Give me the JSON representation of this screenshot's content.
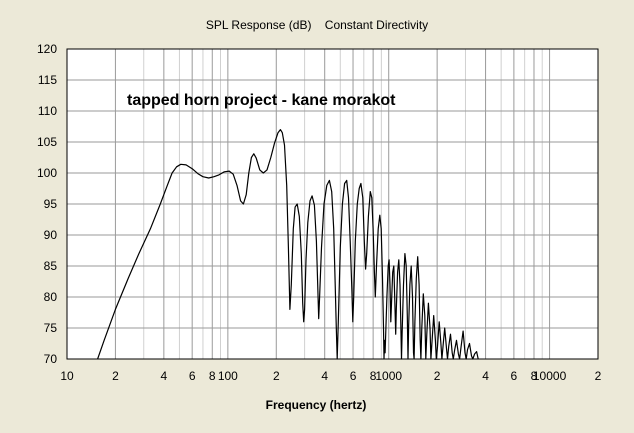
{
  "chart_data": {
    "type": "line",
    "title": "SPL Response (dB)    Constant Directivity",
    "annotation": "tapped horn project - kane morakot",
    "xlabel": "Frequency (hertz)",
    "ylabel": "",
    "x_scale": "log",
    "xlim": [
      10,
      20000
    ],
    "ylim": [
      70,
      120
    ],
    "grid": true,
    "x_tick_labels": [
      {
        "value": 10,
        "label": "10"
      },
      {
        "value": 20,
        "label": "2"
      },
      {
        "value": 40,
        "label": "4"
      },
      {
        "value": 60,
        "label": "6"
      },
      {
        "value": 80,
        "label": "8"
      },
      {
        "value": 100,
        "label": "100"
      },
      {
        "value": 200,
        "label": "2"
      },
      {
        "value": 400,
        "label": "4"
      },
      {
        "value": 600,
        "label": "6"
      },
      {
        "value": 800,
        "label": "8"
      },
      {
        "value": 1000,
        "label": "1000"
      },
      {
        "value": 2000,
        "label": "2"
      },
      {
        "value": 4000,
        "label": "4"
      },
      {
        "value": 6000,
        "label": "6"
      },
      {
        "value": 8000,
        "label": "8"
      },
      {
        "value": 10000,
        "label": "10000"
      },
      {
        "value": 20000,
        "label": "2"
      }
    ],
    "y_ticks": [
      70,
      75,
      80,
      85,
      90,
      95,
      100,
      105,
      110,
      115,
      120
    ],
    "series": [
      {
        "color": "#000000",
        "points": [
          [
            15.5,
            70
          ],
          [
            17,
            73
          ],
          [
            20,
            78
          ],
          [
            24,
            83
          ],
          [
            28,
            87
          ],
          [
            33,
            91
          ],
          [
            38,
            95
          ],
          [
            42,
            98
          ],
          [
            45,
            100
          ],
          [
            48,
            101
          ],
          [
            51,
            101.4
          ],
          [
            55,
            101.3
          ],
          [
            60,
            100.7
          ],
          [
            65,
            99.9
          ],
          [
            70,
            99.4
          ],
          [
            76,
            99.2
          ],
          [
            82,
            99.4
          ],
          [
            88,
            99.7
          ],
          [
            95,
            100.2
          ],
          [
            102,
            100.3
          ],
          [
            108,
            99.8
          ],
          [
            114,
            98
          ],
          [
            120,
            95.5
          ],
          [
            125,
            95
          ],
          [
            130,
            96.5
          ],
          [
            135,
            100
          ],
          [
            140,
            102.5
          ],
          [
            145,
            103.1
          ],
          [
            150,
            102.4
          ],
          [
            158,
            100.5
          ],
          [
            166,
            100
          ],
          [
            175,
            100.5
          ],
          [
            185,
            102.5
          ],
          [
            195,
            104.8
          ],
          [
            205,
            106.5
          ],
          [
            212,
            107
          ],
          [
            218,
            106.5
          ],
          [
            225,
            104.5
          ],
          [
            232,
            98
          ],
          [
            238,
            88
          ],
          [
            243,
            78
          ],
          [
            248,
            82
          ],
          [
            255,
            91
          ],
          [
            262,
            94.5
          ],
          [
            270,
            95
          ],
          [
            278,
            93
          ],
          [
            286,
            87
          ],
          [
            292,
            79
          ],
          [
            296,
            76
          ],
          [
            300,
            78
          ],
          [
            306,
            86
          ],
          [
            314,
            92
          ],
          [
            324,
            95.5
          ],
          [
            334,
            96.3
          ],
          [
            345,
            94.8
          ],
          [
            355,
            89
          ],
          [
            362,
            82
          ],
          [
            367,
            76.5
          ],
          [
            372,
            80
          ],
          [
            382,
            88
          ],
          [
            396,
            95
          ],
          [
            412,
            98
          ],
          [
            428,
            98.8
          ],
          [
            442,
            97
          ],
          [
            455,
            91
          ],
          [
            465,
            82
          ],
          [
            472,
            75
          ],
          [
            478,
            70
          ],
          [
            486,
            76
          ],
          [
            500,
            88
          ],
          [
            515,
            95
          ],
          [
            532,
            98.3
          ],
          [
            548,
            98.8
          ],
          [
            562,
            96
          ],
          [
            576,
            89
          ],
          [
            590,
            81
          ],
          [
            598,
            76
          ],
          [
            606,
            80
          ],
          [
            620,
            89
          ],
          [
            638,
            95
          ],
          [
            655,
            97.5
          ],
          [
            672,
            98.3
          ],
          [
            690,
            96
          ],
          [
            705,
            89
          ],
          [
            718,
            84.5
          ],
          [
            730,
            87
          ],
          [
            748,
            93
          ],
          [
            768,
            97
          ],
          [
            785,
            96
          ],
          [
            800,
            91
          ],
          [
            815,
            84
          ],
          [
            825,
            80
          ],
          [
            840,
            85
          ],
          [
            860,
            91
          ],
          [
            880,
            93.2
          ],
          [
            898,
            91
          ],
          [
            915,
            83
          ],
          [
            928,
            75
          ],
          [
            935,
            70
          ],
          [
            942,
            73
          ],
          [
            950,
            71
          ],
          [
            958,
            74
          ],
          [
            975,
            80
          ],
          [
            992,
            85
          ],
          [
            1005,
            86
          ],
          [
            1018,
            82
          ],
          [
            1030,
            76
          ],
          [
            1040,
            79
          ],
          [
            1058,
            84
          ],
          [
            1075,
            85
          ],
          [
            1090,
            80
          ],
          [
            1105,
            74
          ],
          [
            1115,
            78
          ],
          [
            1135,
            84
          ],
          [
            1155,
            86
          ],
          [
            1175,
            82
          ],
          [
            1190,
            75
          ],
          [
            1200,
            70
          ],
          [
            1212,
            74
          ],
          [
            1235,
            82
          ],
          [
            1260,
            87
          ],
          [
            1285,
            85
          ],
          [
            1305,
            77
          ],
          [
            1318,
            70
          ],
          [
            1330,
            75
          ],
          [
            1355,
            82
          ],
          [
            1380,
            85
          ],
          [
            1405,
            80
          ],
          [
            1425,
            71
          ],
          [
            1438,
            70
          ],
          [
            1455,
            76
          ],
          [
            1485,
            83
          ],
          [
            1515,
            86.5
          ],
          [
            1545,
            82
          ],
          [
            1570,
            73
          ],
          [
            1585,
            70
          ],
          [
            1605,
            75
          ],
          [
            1640,
            80.5
          ],
          [
            1675,
            77
          ],
          [
            1700,
            70
          ],
          [
            1725,
            74
          ],
          [
            1765,
            79
          ],
          [
            1805,
            75
          ],
          [
            1830,
            70
          ],
          [
            1860,
            73
          ],
          [
            1905,
            77
          ],
          [
            1950,
            73
          ],
          [
            1975,
            70
          ],
          [
            2010,
            72
          ],
          [
            2060,
            76
          ],
          [
            2110,
            72.5
          ],
          [
            2140,
            70
          ],
          [
            2175,
            72
          ],
          [
            2230,
            75
          ],
          [
            2290,
            71.5
          ],
          [
            2320,
            70
          ],
          [
            2360,
            72
          ],
          [
            2420,
            74
          ],
          [
            2480,
            71
          ],
          [
            2520,
            70
          ],
          [
            2570,
            71.5
          ],
          [
            2640,
            73
          ],
          [
            2710,
            70.8
          ],
          [
            2760,
            70
          ],
          [
            2820,
            72
          ],
          [
            2900,
            74.5
          ],
          [
            2980,
            71
          ],
          [
            3030,
            70
          ],
          [
            3090,
            71.5
          ],
          [
            3180,
            72.5
          ],
          [
            3270,
            70.5
          ],
          [
            3330,
            70
          ],
          [
            3420,
            70.8
          ],
          [
            3520,
            71.2
          ],
          [
            3600,
            70
          ]
        ]
      }
    ]
  }
}
